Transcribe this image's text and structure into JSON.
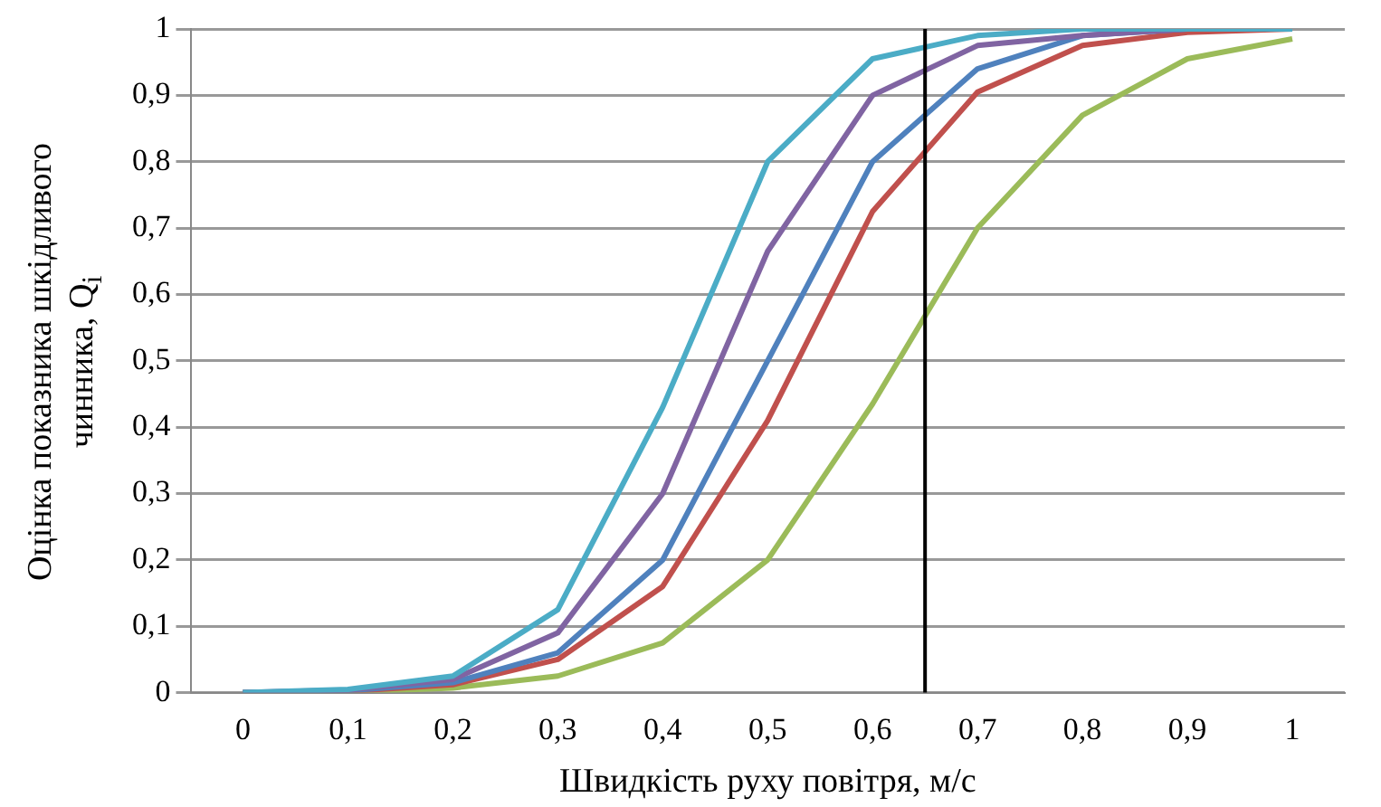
{
  "chart_data": {
    "type": "line",
    "xlabel": "Швидкість руху повітря, м/с",
    "ylabel": "Оцінка показника шкідливого чинника, Q$_{i}$",
    "x": [
      0,
      0.1,
      0.2,
      0.3,
      0.4,
      0.5,
      0.6,
      0.7,
      0.8,
      0.9,
      1
    ],
    "xlim": [
      -0.05,
      1.05
    ],
    "xticks": [
      0,
      {
        "value": 0.1,
        "label": "0,1"
      },
      {
        "value": 0.2,
        "label": "0,2"
      },
      {
        "value": 0.3,
        "label": "0,3"
      },
      {
        "value": 0.4,
        "label": "0,4"
      },
      {
        "value": 0.5,
        "label": "0,5"
      },
      {
        "value": 0.6,
        "label": "0,6"
      },
      {
        "value": 0.7,
        "label": "0,7"
      },
      {
        "value": 0.8,
        "label": "0,8"
      },
      {
        "value": 0.9,
        "label": "0,9"
      },
      1
    ],
    "ylim": [
      0,
      1
    ],
    "yticks": [
      0,
      {
        "value": 0.1,
        "label": "0,1"
      },
      {
        "value": 0.2,
        "label": "0,2"
      },
      {
        "value": 0.3,
        "label": "0,3"
      },
      {
        "value": 0.4,
        "label": "0,4"
      },
      {
        "value": 0.5,
        "label": "0,5"
      },
      {
        "value": 0.6,
        "label": "0,6"
      },
      {
        "value": 0.7,
        "label": "0,7"
      },
      {
        "value": 0.8,
        "label": "0,8"
      },
      {
        "value": 0.9,
        "label": "0,9"
      },
      1
    ],
    "series": [
      {
        "color": "#4bacc6",
        "values": [
          0,
          0.005,
          0.025,
          0.125,
          0.43,
          0.8,
          0.955,
          0.99,
          1,
          1,
          1
        ]
      },
      {
        "color": "#8064a2",
        "values": [
          0,
          0.004,
          0.02,
          0.09,
          0.3,
          0.665,
          0.9,
          0.975,
          0.99,
          1,
          1
        ]
      },
      {
        "color": "#4f81bd",
        "values": [
          0,
          0.003,
          0.015,
          0.06,
          0.2,
          0.5,
          0.8,
          0.94,
          0.99,
          1,
          1
        ]
      },
      {
        "color": "#c0504d",
        "values": [
          0,
          0.002,
          0.012,
          0.05,
          0.16,
          0.41,
          0.725,
          0.905,
          0.975,
          0.995,
          1
        ]
      },
      {
        "color": "#9bbb59",
        "values": [
          0,
          0.001,
          0.007,
          0.025,
          0.075,
          0.2,
          0.435,
          0.7,
          0.87,
          0.955,
          0.985
        ]
      }
    ],
    "ref_lines": [
      {
        "axis": "x",
        "value": 0.65,
        "color": "#000000"
      }
    ],
    "grid": "y",
    "legend": false,
    "marker": "none",
    "line_style": "solid"
  }
}
